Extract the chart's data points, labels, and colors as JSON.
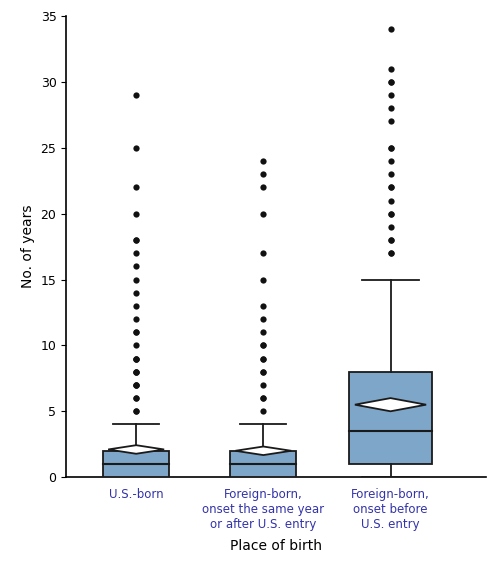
{
  "title": "",
  "xlabel": "Place of birth",
  "ylabel": "No. of years",
  "ylim": [
    0,
    35
  ],
  "yticks": [
    0,
    5,
    10,
    15,
    20,
    25,
    30,
    35
  ],
  "box_color": "#7ea6c8",
  "box_edge_color": "#1a1a1a",
  "median_color": "#1a1a1a",
  "whisker_color": "#1a1a1a",
  "flier_color": "#111111",
  "mean_marker_facecolor": "#ffffff",
  "mean_marker_edgecolor": "#1a1a1a",
  "tick_label_color": "#3333aa",
  "categories": [
    "U.S.-born",
    "Foreign-born,\nonset the same year\nor after U.S. entry",
    "Foreign-born,\nonset before\nU.S. entry"
  ],
  "box1": {
    "q1": 0,
    "median": 1,
    "q3": 2,
    "whisker_low": 0,
    "whisker_high": 4,
    "mean": 2.1,
    "fliers": [
      5,
      5,
      6,
      6,
      7,
      7,
      7,
      8,
      8,
      8,
      9,
      9,
      9,
      10,
      11,
      11,
      12,
      13,
      14,
      15,
      16,
      17,
      18,
      18,
      20,
      22,
      25,
      29
    ]
  },
  "box2": {
    "q1": 0,
    "median": 1,
    "q3": 2,
    "whisker_low": 0,
    "whisker_high": 4,
    "mean": 2.0,
    "fliers": [
      5,
      6,
      6,
      7,
      8,
      8,
      9,
      9,
      10,
      10,
      11,
      12,
      13,
      15,
      17,
      20,
      22,
      23,
      24
    ]
  },
  "box3": {
    "q1": 1,
    "median": 3.5,
    "q3": 8,
    "whisker_low": 0,
    "whisker_high": 15,
    "mean": 5.5,
    "fliers": [
      17,
      17,
      18,
      18,
      19,
      20,
      20,
      21,
      22,
      22,
      23,
      24,
      25,
      25,
      27,
      28,
      29,
      30,
      30,
      31,
      34
    ]
  },
  "figsize": [
    4.97,
    5.64
  ],
  "dpi": 100
}
